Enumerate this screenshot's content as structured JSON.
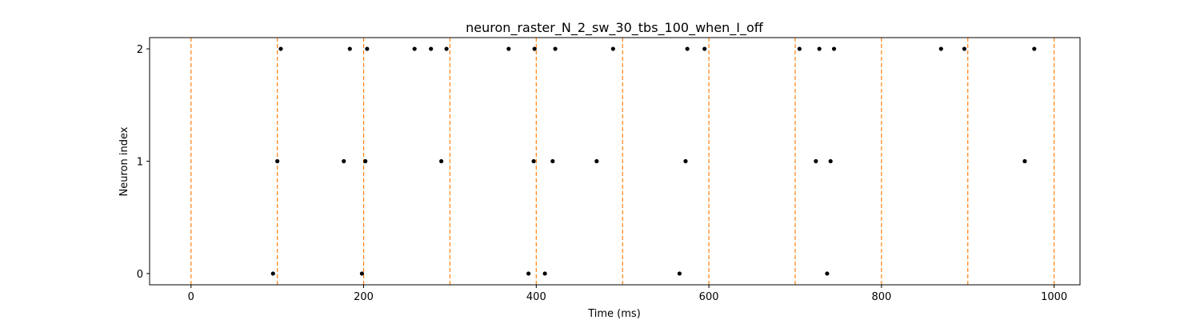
{
  "chart_data": {
    "type": "scatter",
    "title": "neuron_raster_N_2_sw_30_tbs_100_when_I_off",
    "xlabel": "Time (ms)",
    "ylabel": "Neuron index",
    "xlim": [
      -48,
      1030
    ],
    "ylim": [
      -0.1,
      2.1
    ],
    "x_ticks": [
      0,
      200,
      400,
      600,
      800,
      1000
    ],
    "y_ticks": [
      0,
      1,
      2
    ],
    "grid": false,
    "marker_color": "#000000",
    "vline_color": "#ff7f0e",
    "vlines": [
      0,
      100,
      200,
      300,
      400,
      500,
      600,
      700,
      800,
      900,
      1000
    ],
    "spikes": [
      {
        "neuron": 0,
        "times": [
          95,
          198,
          391,
          410,
          566,
          737
        ]
      },
      {
        "neuron": 1,
        "times": [
          100,
          177,
          202,
          290,
          397,
          419,
          470,
          573,
          724,
          741,
          966
        ]
      },
      {
        "neuron": 2,
        "times": [
          104,
          184,
          204,
          259,
          278,
          296,
          368,
          398,
          422,
          489,
          575,
          595,
          705,
          728,
          745,
          869,
          896,
          977
        ]
      }
    ]
  }
}
